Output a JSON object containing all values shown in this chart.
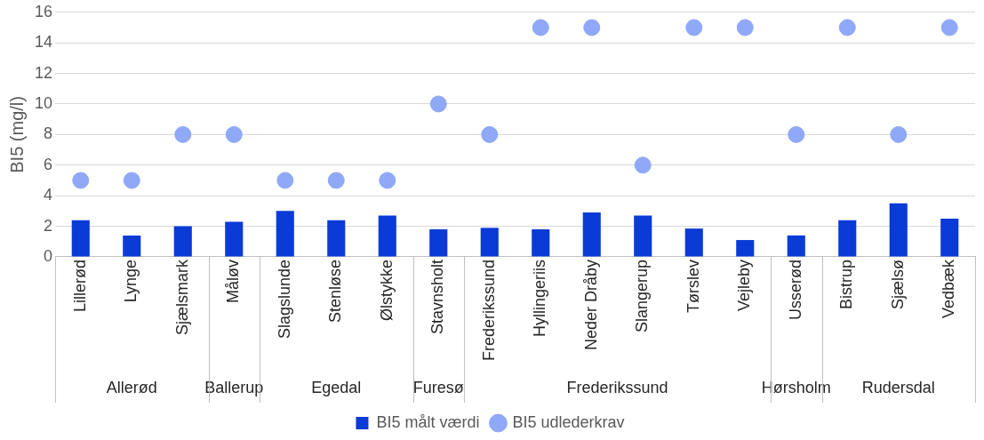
{
  "chart_data": {
    "type": "bar",
    "ylabel": "BI5 (mg/l)",
    "categories": [
      "Lillerød",
      "Lynge",
      "Sjælsmark",
      "Måløv",
      "Slagslunde",
      "Stenløse",
      "Ølstykke",
      "Stavnsholt",
      "Frederikssund",
      "Hyllingeriis",
      "Neder Dråby",
      "Slangerup",
      "Tørslev",
      "Vejleby",
      "Usserød",
      "Bistrup",
      "Sjælsø",
      "Vedbæk"
    ],
    "series": [
      {
        "name": "BI5 målt værdi",
        "color": "#0b3bd6",
        "values": [
          2.4,
          1.4,
          2.0,
          2.3,
          3.0,
          2.4,
          2.7,
          1.8,
          1.9,
          1.8,
          2.9,
          2.7,
          1.85,
          1.1,
          1.4,
          2.4,
          3.5,
          2.5
        ]
      },
      {
        "name": "BI5 udlederkrav",
        "type": "scatter",
        "color": "#8fa8f8",
        "values": [
          5,
          5,
          8,
          8,
          5,
          5,
          5,
          10,
          8,
          15,
          15,
          6,
          15,
          15,
          8,
          15,
          8,
          15
        ]
      }
    ],
    "ylim": [
      0,
      16
    ],
    "yticks": [
      0,
      2,
      4,
      6,
      8,
      10,
      12,
      14,
      16
    ],
    "grid": "y",
    "legend": "bottom",
    "marker": "circle",
    "annotations": [
      "Allerød",
      "Ballerup",
      "Egedal",
      "Furesø",
      "Frederikssund",
      "Hørsholm",
      "Rudersdal"
    ]
  }
}
